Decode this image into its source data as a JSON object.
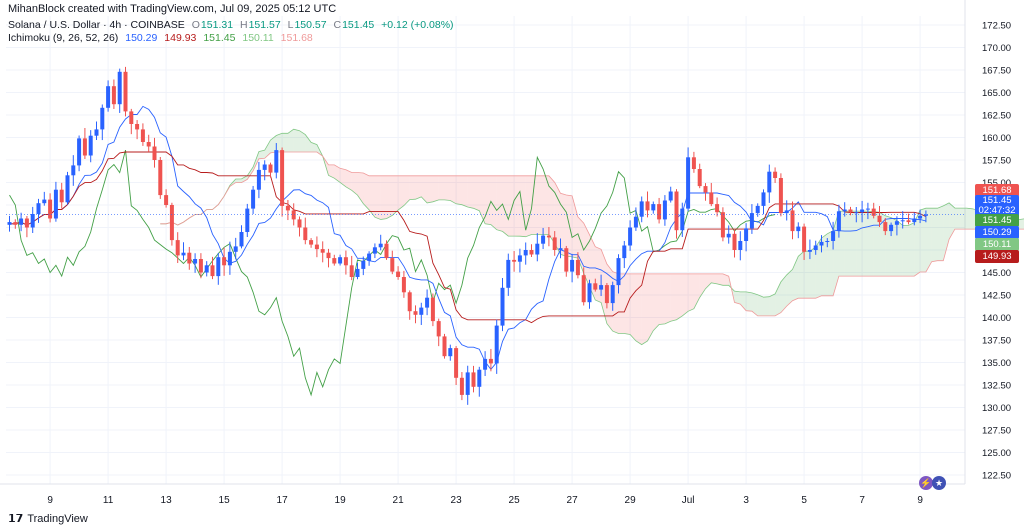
{
  "header": {
    "credit": "MihanBlock created with TradingView.com, Jul 09, 2025 05:12 UTC",
    "symbol": "Solana / U.S. Dollar · 4h · COINBASE",
    "ohlc": {
      "o_label": "O",
      "o": "151.31",
      "h_label": "H",
      "h": "151.57",
      "l_label": "L",
      "l": "150.57",
      "c_label": "C",
      "c": "151.45",
      "change": "+0.12 (+0.08%)"
    },
    "indicator": {
      "name": "Ichimoku (9, 26, 52, 26)",
      "values": [
        "150.29",
        "149.93",
        "151.45",
        "150.11",
        "151.68"
      ]
    }
  },
  "footer": {
    "brand": "TradingView"
  },
  "price_tags": [
    {
      "value": "151.68",
      "color": "#ef5350"
    },
    {
      "value": "151.45",
      "sub": "02:47:32",
      "color": "#2962ff"
    },
    {
      "value": "151.45",
      "color": "#43a047"
    },
    {
      "value": "150.29",
      "color": "#2962ff"
    },
    {
      "value": "150.11",
      "color": "#81c784"
    },
    {
      "value": "149.93",
      "color": "#b71c1c"
    }
  ],
  "event_icons": [
    "lightning-icon",
    "us-flag-icon"
  ],
  "colors": {
    "up": "#26a69a",
    "down": "#ef5350",
    "up_candle": "#2962ff",
    "conversion": "#2962ff",
    "base": "#b71c1c",
    "lagging": "#43a047",
    "leading_a": "#81c784",
    "leading_b": "#ef9a9a",
    "cloud_bull": "rgba(67,160,71,0.15)",
    "cloud_bear": "rgba(239,83,80,0.15)"
  },
  "chart_data": {
    "type": "candlestick",
    "title": "Solana / U.S. Dollar · 4h · COINBASE",
    "ylim": [
      121.5,
      173.5
    ],
    "y_ticks": [
      122.5,
      125,
      127.5,
      130,
      132.5,
      135,
      137.5,
      140,
      142.5,
      145,
      147.5,
      150,
      152.5,
      155,
      157.5,
      160,
      162.5,
      165,
      167.5,
      170,
      172.5
    ],
    "x_ticks": [
      {
        "bar": 7,
        "label": "9"
      },
      {
        "bar": 17,
        "label": "11"
      },
      {
        "bar": 27,
        "label": "13"
      },
      {
        "bar": 37,
        "label": "15"
      },
      {
        "bar": 47,
        "label": "17"
      },
      {
        "bar": 57,
        "label": "19"
      },
      {
        "bar": 67,
        "label": "21"
      },
      {
        "bar": 77,
        "label": "23"
      },
      {
        "bar": 87,
        "label": "25"
      },
      {
        "bar": 97,
        "label": "27"
      },
      {
        "bar": 107,
        "label": "29"
      },
      {
        "bar": 117,
        "label": "Jul"
      },
      {
        "bar": 127,
        "label": "3"
      },
      {
        "bar": 137,
        "label": "5"
      },
      {
        "bar": 147,
        "label": "7"
      },
      {
        "bar": 157,
        "label": "9"
      }
    ],
    "last_price": 151.45,
    "closes": [
      150.6,
      150.3,
      151.0,
      150.0,
      151.5,
      152.7,
      153.1,
      151.0,
      154.2,
      152.8,
      155.8,
      156.9,
      159.9,
      158.0,
      160.2,
      160.9,
      163.3,
      165.7,
      163.7,
      167.3,
      162.9,
      161.5,
      160.9,
      159.5,
      159.0,
      157.5,
      153.6,
      152.5,
      148.6,
      146.9,
      147.2,
      146.0,
      146.5,
      145.0,
      145.8,
      144.6,
      146.7,
      145.8,
      147.3,
      147.9,
      149.5,
      152.1,
      154.2,
      156.4,
      157.0,
      156.1,
      158.6,
      152.4,
      151.9,
      150.9,
      150.0,
      148.6,
      148.1,
      147.6,
      147.2,
      146.6,
      146.0,
      146.7,
      145.8,
      144.5,
      145.4,
      146.3,
      147.1,
      147.8,
      148.2,
      146.6,
      145.1,
      144.5,
      142.8,
      140.7,
      140.3,
      141.1,
      142.2,
      139.6,
      137.9,
      135.7,
      136.6,
      133.3,
      131.4,
      133.9,
      132.3,
      134.2,
      135.4,
      134.9,
      139.1,
      143.3,
      146.4,
      146.2,
      146.9,
      147.5,
      147.0,
      148.2,
      149.1,
      148.9,
      147.5,
      147.7,
      145.1,
      146.4,
      144.7,
      141.7,
      143.8,
      143.1,
      143.6,
      141.6,
      143.6,
      146.6,
      148.0,
      150.0,
      151.2,
      152.9,
      151.9,
      152.6,
      150.9,
      153.0,
      154.0,
      149.7,
      152.1,
      157.8,
      156.5,
      154.6,
      153.9,
      152.6,
      151.7,
      148.9,
      149.3,
      147.5,
      148.5,
      149.9,
      151.6,
      152.4,
      153.9,
      156.2,
      155.5,
      151.6,
      151.9,
      149.6,
      150.1,
      147.3,
      147.5,
      148.0,
      148.4,
      148.5,
      149.6,
      151.8,
      152.0,
      151.7,
      151.7,
      152.0,
      152.1,
      151.3,
      150.6,
      149.6,
      150.3,
      150.7,
      150.8,
      150.6,
      151.0,
      151.3,
      151.45
    ]
  }
}
